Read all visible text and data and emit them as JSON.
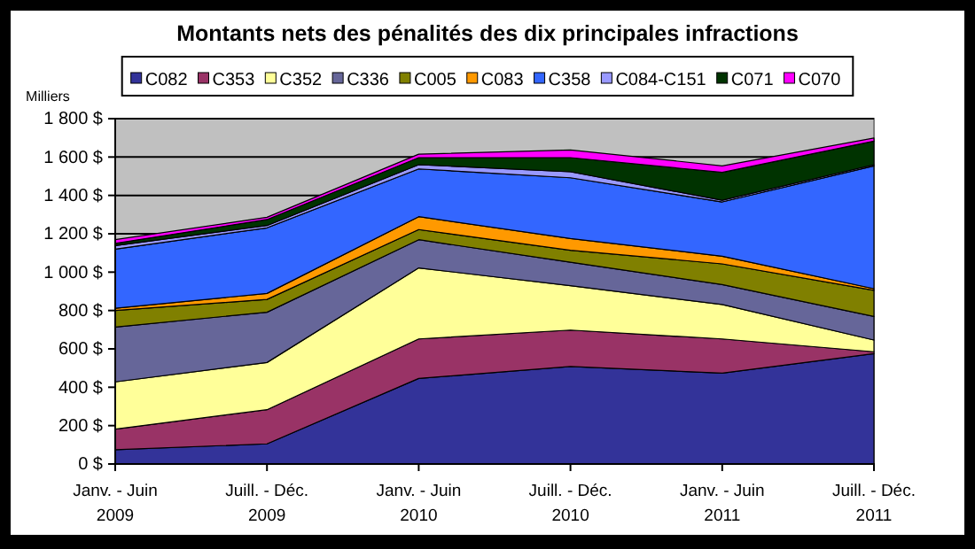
{
  "chart_data": {
    "type": "area",
    "stacked": true,
    "title": "Montants nets des pénalités des dix principales infractions",
    "ylabel": "Milliers",
    "categories": [
      "Janv.  -  Juin\n2009",
      "Juill. - Déc.\n2009",
      "Janv.  -  Juin\n2010",
      "Juill. - Déc.\n2010",
      "Janv.  -  Juin\n2011",
      "Juill. - Déc.\n2011"
    ],
    "series": [
      {
        "name": "C082",
        "color": "#333399",
        "values": [
          74,
          105,
          446,
          508,
          474,
          575
        ]
      },
      {
        "name": "C353",
        "color": "#993366",
        "values": [
          108,
          178,
          206,
          190,
          178,
          10
        ]
      },
      {
        "name": "C352",
        "color": "#ffff99",
        "values": [
          246,
          246,
          370,
          231,
          179,
          61
        ]
      },
      {
        "name": "C336",
        "color": "#666699",
        "values": [
          286,
          262,
          147,
          123,
          104,
          123
        ]
      },
      {
        "name": "C005",
        "color": "#808000",
        "values": [
          86,
          67,
          53,
          62,
          108,
          136
        ]
      },
      {
        "name": "C083",
        "color": "#ff9900",
        "values": [
          12,
          31,
          67,
          61,
          40,
          9
        ]
      },
      {
        "name": "C358",
        "color": "#3366ff",
        "values": [
          308,
          342,
          249,
          317,
          283,
          640
        ]
      },
      {
        "name": "C084-C151",
        "color": "#9999ff",
        "values": [
          18,
          12,
          22,
          31,
          9,
          6
        ]
      },
      {
        "name": "C071",
        "color": "#003300",
        "values": [
          12,
          31,
          37,
          74,
          145,
          123
        ]
      },
      {
        "name": "C070",
        "color": "#ff00ff",
        "values": [
          19,
          12,
          18,
          40,
          34,
          16
        ]
      }
    ],
    "ylim": [
      0,
      1800
    ],
    "yticks": [
      {
        "value": 0,
        "label": "0 $"
      },
      {
        "value": 200,
        "label": "200 $"
      },
      {
        "value": 400,
        "label": "400 $"
      },
      {
        "value": 600,
        "label": "600 $"
      },
      {
        "value": 800,
        "label": "800 $"
      },
      {
        "value": 1000,
        "label": "1 000 $"
      },
      {
        "value": 1200,
        "label": "1 200 $"
      },
      {
        "value": 1400,
        "label": "1 400 $"
      },
      {
        "value": 1600,
        "label": "1 600 $"
      },
      {
        "value": 1800,
        "label": "1 800 $"
      }
    ],
    "grid": "y",
    "legend": "top"
  }
}
